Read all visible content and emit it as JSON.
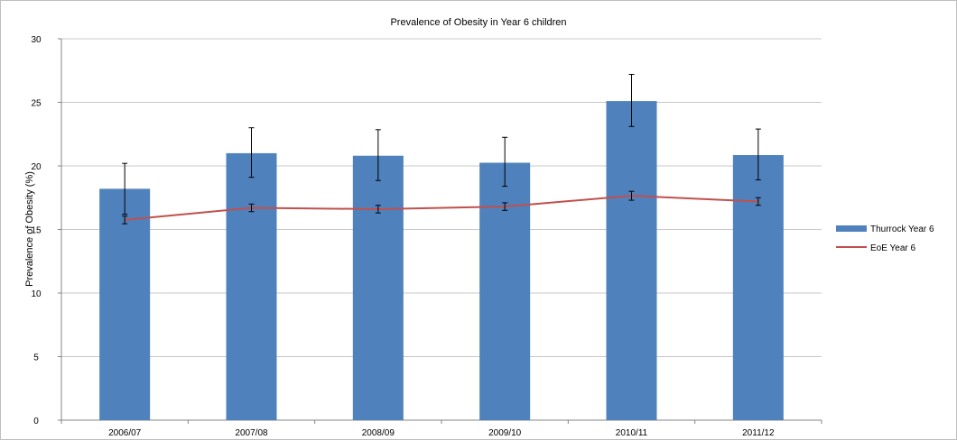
{
  "chart_data": {
    "type": "bar",
    "title": "Prevalence of Obesity in Year 6 children",
    "xlabel": "",
    "ylabel": "Prevalence of Obesity (%)",
    "ylim": [
      0,
      30
    ],
    "yticks": [
      0,
      5,
      10,
      15,
      20,
      25,
      30
    ],
    "grid": true,
    "legend_position": "right",
    "categories": [
      "2006/07",
      "2007/08",
      "2008/09",
      "2009/10",
      "2010/11",
      "2011/12"
    ],
    "series": [
      {
        "name": "Thurrock Year 6",
        "type": "bar",
        "color": "#4f81bd",
        "values": [
          18.2,
          21.0,
          20.8,
          20.25,
          25.1,
          20.85
        ],
        "error_low": [
          16.2,
          19.1,
          18.85,
          18.4,
          23.1,
          18.9
        ],
        "error_high": [
          20.2,
          23.0,
          22.85,
          22.25,
          27.2,
          22.9
        ]
      },
      {
        "name": "EoE Year 6",
        "type": "line",
        "color": "#c0504d",
        "values": [
          15.75,
          16.7,
          16.6,
          16.8,
          17.65,
          17.2
        ],
        "error_low": [
          15.45,
          16.4,
          16.3,
          16.5,
          17.3,
          16.9
        ],
        "error_high": [
          16.05,
          17.0,
          16.9,
          17.1,
          18.0,
          17.5
        ]
      }
    ]
  }
}
